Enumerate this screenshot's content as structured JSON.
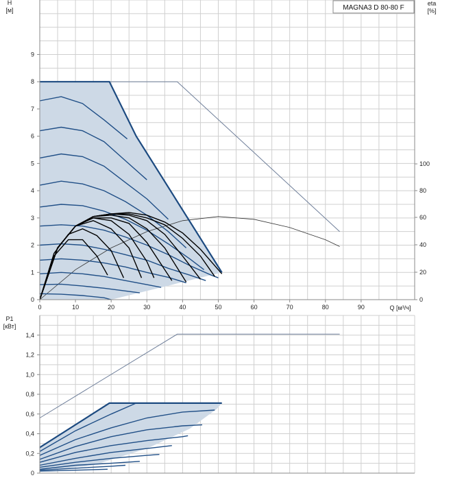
{
  "chart_data": [
    {
      "type": "line",
      "name_box": "MAGNA3 D 80-80 F",
      "ylabel_top": "H",
      "ylabel_unit": "[м]",
      "y2label_top": "eta",
      "y2label_unit": "[%]",
      "xlabel": "Q [м³/ч]",
      "xlim": [
        0,
        105
      ],
      "ylim": [
        0,
        11
      ],
      "x_ticks": [
        "0",
        "10",
        "20",
        "30",
        "40",
        "50",
        "60",
        "70",
        "80",
        "90"
      ],
      "y_ticks": [
        "0",
        "1",
        "2",
        "3",
        "4",
        "5",
        "6",
        "7",
        "8",
        "9"
      ],
      "y2_ticks": [
        "0",
        "20",
        "40",
        "60",
        "80",
        "100"
      ],
      "y2lim": [
        0,
        100
      ],
      "envelope_max": {
        "x": [
          0,
          19.5,
          27,
          51
        ],
        "y": [
          8,
          8,
          6,
          1
        ]
      },
      "envelope_min": {
        "x": [
          0,
          20,
          51
        ],
        "y": [
          0,
          0,
          1
        ]
      },
      "h_curves": [
        {
          "x": [
            0,
            6,
            12,
            18,
            24.5
          ],
          "y": [
            7.3,
            7.45,
            7.2,
            6.6,
            5.9
          ]
        },
        {
          "x": [
            0,
            6,
            12,
            18,
            24,
            30
          ],
          "y": [
            6.2,
            6.33,
            6.2,
            5.8,
            5.1,
            4.4
          ]
        },
        {
          "x": [
            0,
            6,
            12,
            18,
            24,
            30,
            36
          ],
          "y": [
            5.2,
            5.35,
            5.25,
            4.9,
            4.3,
            3.7,
            2.95
          ]
        },
        {
          "x": [
            0,
            6,
            12,
            18,
            24,
            30,
            36,
            41
          ],
          "y": [
            4.2,
            4.35,
            4.25,
            4.0,
            3.6,
            3.1,
            2.5,
            1.9
          ]
        },
        {
          "x": [
            0,
            6,
            12,
            18,
            24,
            30,
            36,
            42,
            46
          ],
          "y": [
            3.4,
            3.5,
            3.45,
            3.25,
            2.95,
            2.55,
            2.05,
            1.5,
            1.1
          ]
        },
        {
          "x": [
            0,
            6,
            12,
            18,
            24,
            30,
            36,
            42,
            48,
            50
          ],
          "y": [
            2.7,
            2.75,
            2.7,
            2.55,
            2.3,
            2.0,
            1.65,
            1.25,
            0.9,
            0.8
          ]
        },
        {
          "x": [
            0,
            6,
            12,
            18,
            24,
            30,
            36,
            42,
            46.5
          ],
          "y": [
            2.0,
            2.05,
            2.0,
            1.85,
            1.65,
            1.45,
            1.15,
            0.9,
            0.7
          ]
        },
        {
          "x": [
            0,
            6,
            12,
            18,
            24,
            30,
            36,
            41
          ],
          "y": [
            1.45,
            1.5,
            1.45,
            1.35,
            1.2,
            1.0,
            0.82,
            0.62
          ]
        },
        {
          "x": [
            0,
            6,
            12,
            18,
            24,
            30,
            34
          ],
          "y": [
            0.95,
            1.0,
            0.95,
            0.85,
            0.7,
            0.55,
            0.45
          ]
        },
        {
          "x": [
            0,
            6,
            12,
            18,
            24,
            28
          ],
          "y": [
            0.55,
            0.57,
            0.5,
            0.42,
            0.32,
            0.25
          ]
        },
        {
          "x": [
            0,
            6,
            12,
            18,
            20
          ],
          "y": [
            0.22,
            0.2,
            0.15,
            0.07,
            0
          ]
        }
      ],
      "eta_curves": [
        {
          "x": [
            0,
            4,
            8,
            12,
            16,
            19
          ],
          "y": [
            0,
            1.6,
            2.2,
            2.2,
            1.6,
            0.9
          ]
        },
        {
          "x": [
            0,
            4,
            8,
            12,
            16,
            20,
            23.5
          ],
          "y": [
            0,
            1.7,
            2.4,
            2.6,
            2.35,
            1.8,
            0.8
          ]
        },
        {
          "x": [
            0,
            5,
            10,
            15,
            20,
            25,
            28.5
          ],
          "y": [
            0,
            1.9,
            2.7,
            2.9,
            2.6,
            1.9,
            0.8
          ]
        },
        {
          "x": [
            0,
            5,
            10,
            15,
            20,
            25,
            30,
            32
          ],
          "y": [
            0,
            1.9,
            2.7,
            3.0,
            2.9,
            2.4,
            1.4,
            0.8
          ]
        },
        {
          "x": [
            0,
            5,
            10,
            15,
            20,
            25,
            30,
            35,
            37
          ],
          "y": [
            0,
            1.9,
            2.7,
            3.0,
            3.0,
            2.8,
            2.1,
            1.1,
            0.7
          ]
        },
        {
          "x": [
            0,
            5,
            10,
            15,
            20,
            25,
            30,
            35,
            41
          ],
          "y": [
            0,
            1.9,
            2.7,
            3.05,
            3.1,
            3.0,
            2.6,
            1.9,
            0.65
          ]
        },
        {
          "x": [
            0,
            5,
            10,
            15,
            20,
            25,
            30,
            35,
            40,
            45
          ],
          "y": [
            0,
            1.9,
            2.7,
            3.05,
            3.15,
            3.1,
            2.9,
            2.4,
            1.6,
            0.75
          ]
        },
        {
          "x": [
            0,
            5,
            10,
            15,
            20,
            25,
            30,
            35,
            40,
            45,
            49
          ],
          "y": [
            0,
            1.9,
            2.7,
            3.05,
            3.15,
            3.15,
            3.0,
            2.75,
            2.25,
            1.6,
            0.85
          ]
        },
        {
          "x": [
            0,
            5,
            10,
            15,
            20,
            25,
            30,
            35,
            40,
            45,
            51
          ],
          "y": [
            0,
            1.9,
            2.7,
            3.05,
            3.15,
            3.2,
            3.1,
            2.85,
            2.45,
            1.85,
            0.95
          ]
        }
      ],
      "ext_head": {
        "x": [
          19.5,
          38.5,
          84
        ],
        "y": [
          8,
          8,
          2.5
        ]
      },
      "ext_eta": {
        "x": [
          0,
          10,
          20,
          30,
          40,
          50,
          60,
          70,
          80,
          84
        ],
        "y": [
          0,
          1.1,
          1.9,
          2.5,
          2.9,
          3.05,
          2.95,
          2.65,
          2.2,
          1.95
        ]
      }
    },
    {
      "type": "line",
      "ylabel_top": "P1",
      "ylabel_unit": "[кВт]",
      "xlim": [
        0,
        105
      ],
      "ylim": [
        0,
        1.6
      ],
      "y_ticks": [
        "0",
        "0,2",
        "0,4",
        "0,6",
        "0,8",
        "1,0",
        "1,2",
        "1,4"
      ],
      "envelope_max": {
        "x": [
          0,
          19.5,
          51
        ],
        "y": [
          0.26,
          0.71,
          0.71
        ]
      },
      "envelope_min": {
        "x": [
          0,
          15,
          30,
          42,
          49.5
        ],
        "y": [
          0.02,
          0.08,
          0.25,
          0.45,
          0.65
        ]
      },
      "p_curves": [
        {
          "x": [
            0,
            10,
            20,
            27
          ],
          "y": [
            0.22,
            0.43,
            0.6,
            0.71
          ]
        },
        {
          "x": [
            0,
            10,
            20,
            30,
            40,
            49
          ],
          "y": [
            0.18,
            0.34,
            0.46,
            0.56,
            0.62,
            0.64
          ]
        },
        {
          "x": [
            0,
            10,
            20,
            30,
            40,
            45.5
          ],
          "y": [
            0.14,
            0.27,
            0.37,
            0.44,
            0.48,
            0.49
          ]
        },
        {
          "x": [
            0,
            10,
            20,
            30,
            40,
            41.5
          ],
          "y": [
            0.11,
            0.21,
            0.28,
            0.33,
            0.37,
            0.38
          ]
        },
        {
          "x": [
            0,
            10,
            20,
            30,
            37
          ],
          "y": [
            0.08,
            0.15,
            0.21,
            0.25,
            0.28
          ]
        },
        {
          "x": [
            0,
            10,
            20,
            30,
            33.5
          ],
          "y": [
            0.06,
            0.11,
            0.15,
            0.18,
            0.19
          ]
        },
        {
          "x": [
            0,
            10,
            20,
            28
          ],
          "y": [
            0.04,
            0.08,
            0.1,
            0.12
          ]
        },
        {
          "x": [
            0,
            10,
            20,
            24
          ],
          "y": [
            0.03,
            0.05,
            0.07,
            0.08
          ]
        },
        {
          "x": [
            0,
            10,
            19
          ],
          "y": [
            0.02,
            0.03,
            0.04
          ]
        }
      ],
      "ext_power": {
        "x": [
          0,
          38.5,
          84
        ],
        "y": [
          0.56,
          1.41,
          1.41
        ]
      }
    }
  ],
  "colors": {
    "fill": "#cdd9e6",
    "curve": "#1f4e86",
    "envelope": "#1c4a80",
    "eta": "#000000",
    "ext": "#6f7f9a",
    "grid": "#cfcfcf",
    "axis": "#8a8a8a"
  }
}
